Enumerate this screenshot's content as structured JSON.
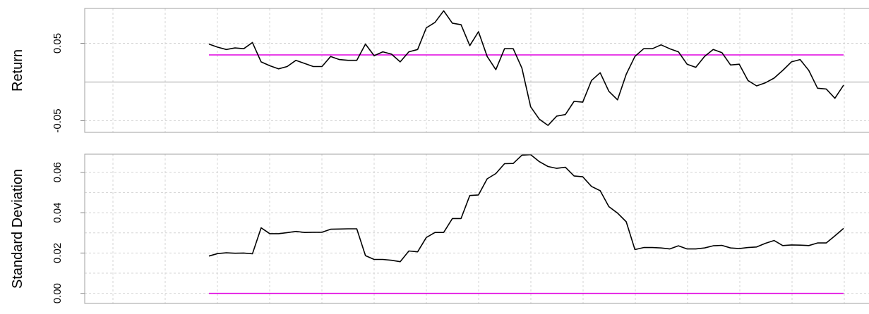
{
  "chart_data": [
    {
      "type": "line",
      "ylabel": "Return",
      "ylim": [
        -0.065,
        0.095
      ],
      "yticks": [
        -0.05,
        0.05
      ],
      "ytick_labels": [
        "-0.05",
        "0.05"
      ],
      "grid": true,
      "reference_line": {
        "y": 0.035,
        "color": "#e000e0"
      },
      "zero_line": {
        "y": 0
      },
      "series": [
        {
          "color": "#000000",
          "values": [
            0.049,
            0.045,
            0.042,
            0.044,
            0.043,
            0.051,
            0.026,
            0.021,
            0.017,
            0.02,
            0.028,
            0.024,
            0.02,
            0.02,
            0.033,
            0.029,
            0.028,
            0.028,
            0.049,
            0.034,
            0.039,
            0.036,
            0.026,
            0.039,
            0.042,
            0.07,
            0.077,
            0.092,
            0.076,
            0.074,
            0.047,
            0.065,
            0.033,
            0.016,
            0.043,
            0.043,
            0.018,
            -0.032,
            -0.048,
            -0.056,
            -0.044,
            -0.042,
            -0.025,
            -0.026,
            0.002,
            0.012,
            -0.012,
            -0.023,
            0.01,
            0.033,
            0.043,
            0.043,
            0.048,
            0.043,
            0.039,
            0.023,
            0.019,
            0.033,
            0.042,
            0.038,
            0.022,
            0.023,
            0.002,
            -0.005,
            -0.001,
            0.005,
            0.015,
            0.026,
            0.029,
            0.015,
            -0.008,
            -0.009,
            -0.021,
            -0.004
          ]
        }
      ]
    },
    {
      "type": "line",
      "ylabel": "Standard Deviation",
      "ylim": [
        -0.005,
        0.069
      ],
      "yticks": [
        0.0,
        0.02,
        0.04,
        0.06
      ],
      "ytick_labels": [
        "0.00",
        "0.02",
        "0.04",
        "0.06"
      ],
      "grid": true,
      "reference_line": {
        "y": 0.0,
        "color": "#e000e0"
      },
      "series": [
        {
          "color": "#000000",
          "values": [
            0.0185,
            0.0197,
            0.0201,
            0.0199,
            0.02,
            0.0196,
            0.0325,
            0.0296,
            0.0296,
            0.0301,
            0.0307,
            0.0302,
            0.0303,
            0.0303,
            0.0318,
            0.0319,
            0.032,
            0.032,
            0.0187,
            0.0168,
            0.0168,
            0.0164,
            0.0157,
            0.021,
            0.0206,
            0.0277,
            0.0302,
            0.0302,
            0.0371,
            0.0371,
            0.0485,
            0.0488,
            0.0568,
            0.0594,
            0.0643,
            0.0644,
            0.0685,
            0.0688,
            0.0653,
            0.0629,
            0.062,
            0.0625,
            0.0582,
            0.0578,
            0.053,
            0.0509,
            0.043,
            0.0398,
            0.0355,
            0.0217,
            0.0227,
            0.0227,
            0.0225,
            0.022,
            0.0236,
            0.022,
            0.022,
            0.0225,
            0.0236,
            0.0238,
            0.0225,
            0.0222,
            0.0227,
            0.023,
            0.0248,
            0.0262,
            0.0237,
            0.024,
            0.0239,
            0.0237,
            0.025,
            0.025,
            0.0285,
            0.0322
          ]
        }
      ]
    }
  ]
}
